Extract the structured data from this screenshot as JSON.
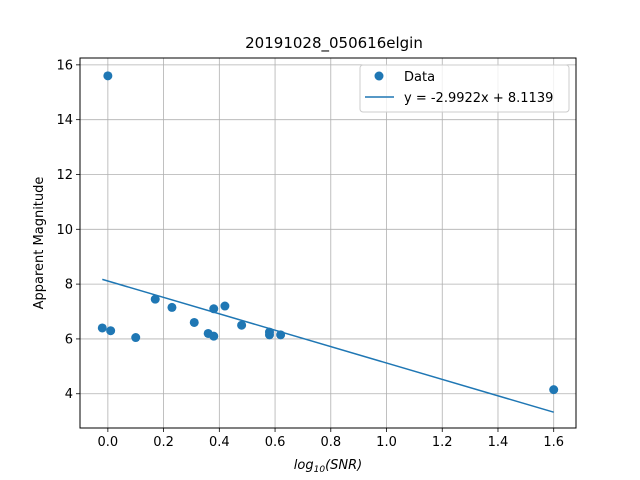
{
  "chart_data": {
    "type": "scatter",
    "title": "20191028_050616elgin",
    "xlabel_prefix": "log",
    "xlabel_sub": "10",
    "xlabel_suffix": "(SNR)",
    "ylabel": "Apparent Magnitude",
    "xlim": [
      -0.1,
      1.68
    ],
    "ylim": [
      2.75,
      16.25
    ],
    "xticks": [
      0.0,
      0.2,
      0.4,
      0.6,
      0.8,
      1.0,
      1.2,
      1.4,
      1.6
    ],
    "xtick_labels": [
      "0.0",
      "0.2",
      "0.4",
      "0.6",
      "0.8",
      "1.0",
      "1.2",
      "1.4",
      "1.6"
    ],
    "yticks": [
      4,
      6,
      8,
      10,
      12,
      14,
      16
    ],
    "ytick_labels": [
      "4",
      "6",
      "8",
      "10",
      "12",
      "14",
      "16"
    ],
    "grid": true,
    "legend_position": "top-right",
    "color": "#1f77b4",
    "series": [
      {
        "name": "Data",
        "kind": "scatter",
        "x": [
          0.0,
          -0.02,
          0.01,
          0.1,
          0.17,
          0.23,
          0.31,
          0.36,
          0.38,
          0.38,
          0.42,
          0.48,
          0.58,
          0.58,
          0.62,
          1.6
        ],
        "y": [
          15.6,
          6.4,
          6.3,
          6.05,
          7.45,
          7.15,
          6.6,
          6.2,
          6.1,
          7.1,
          7.2,
          6.5,
          6.25,
          6.15,
          6.15,
          4.15
        ]
      },
      {
        "name": "y = -2.9922x + 8.1139",
        "kind": "line",
        "slope": -2.9922,
        "intercept": 8.1139,
        "x_range": [
          -0.02,
          1.6
        ]
      }
    ]
  }
}
